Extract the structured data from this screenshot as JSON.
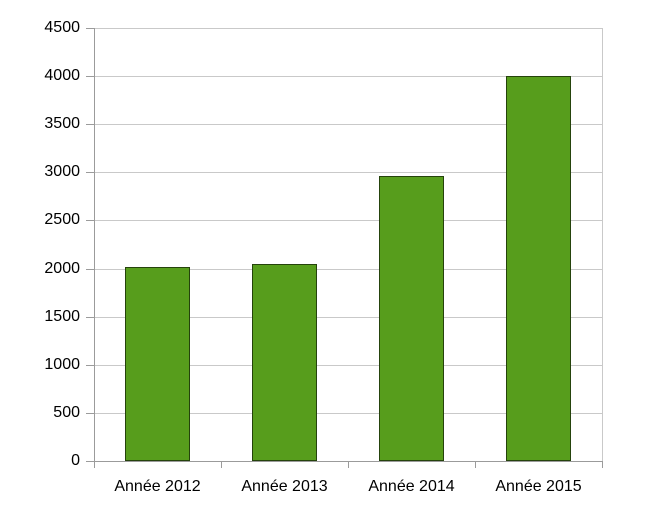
{
  "chart_data": {
    "type": "bar",
    "title": "",
    "xlabel": "",
    "ylabel": "",
    "categories": [
      "Année 2012",
      "Année 2013",
      "Année 2014",
      "Année 2015"
    ],
    "series": [
      {
        "name": "series-1",
        "values": [
          2020,
          2045,
          2960,
          4000
        ]
      }
    ],
    "ylim": [
      0,
      4500
    ],
    "ytick_step": 500,
    "yticks": [
      0,
      500,
      1000,
      1500,
      2000,
      2500,
      3000,
      3500,
      4000,
      4500
    ],
    "grid": "horizontal",
    "legend": "none",
    "colors": {
      "bar_fill": "#579d1c",
      "bar_border": "#25430c",
      "gridline": "#c9c9c9",
      "axis": "#9b9b9b",
      "text": "#000000",
      "background": "#ffffff"
    }
  }
}
